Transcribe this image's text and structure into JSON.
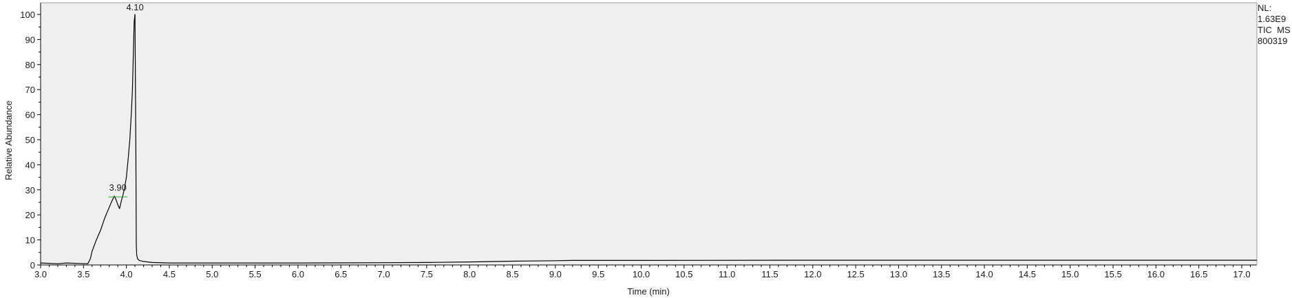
{
  "chart_data": {
    "type": "line",
    "xlabel": "Time (min)",
    "ylabel": "Relative Abundance",
    "xlim": [
      3.0,
      17.2
    ],
    "ylim": [
      0,
      100
    ],
    "x_ticks": [
      "3.0",
      "3.5",
      "4.0",
      "4.5",
      "5.0",
      "5.5",
      "6.0",
      "6.5",
      "7.0",
      "7.5",
      "8.0",
      "8.5",
      "9.0",
      "9.5",
      "10.0",
      "10.5",
      "11.0",
      "11.5",
      "12.0",
      "12.5",
      "13.0",
      "13.5",
      "14.0",
      "14.5",
      "15.0",
      "15.5",
      "16.0",
      "16.5",
      "17.0"
    ],
    "y_ticks": [
      "0",
      "10",
      "20",
      "30",
      "40",
      "50",
      "60",
      "70",
      "80",
      "90",
      "100"
    ],
    "grid": false,
    "colors": {
      "plot_bg": "#efefef",
      "line": "#000000",
      "frame": "#9a9a9a",
      "baseline_marker": "#3aa33a"
    },
    "series": [
      {
        "x": [
          3.0,
          3.2,
          3.3,
          3.45,
          3.55,
          3.58,
          3.6,
          3.65,
          3.7,
          3.75,
          3.8,
          3.83,
          3.86,
          3.88,
          3.9,
          3.92,
          3.94,
          3.96,
          3.98,
          4.0,
          4.02,
          4.04,
          4.06,
          4.07,
          4.08,
          4.09,
          4.1,
          4.11,
          4.115,
          4.12,
          4.13,
          4.15,
          4.2,
          4.3,
          4.5,
          5.0,
          6.0,
          7.0,
          7.5,
          8.0,
          8.5,
          9.0,
          9.2,
          10.0,
          12.0,
          14.0,
          16.0,
          17.2
        ],
        "values": [
          0.8,
          0.5,
          0.8,
          0.6,
          0.5,
          2.5,
          5.5,
          10.0,
          14.0,
          19.0,
          23.0,
          25.5,
          27.5,
          26.0,
          24.0,
          22.5,
          25.5,
          28.0,
          31.0,
          35.0,
          42.0,
          50.0,
          62.0,
          70.0,
          83.0,
          97.0,
          100.0,
          45.0,
          8.0,
          4.0,
          2.5,
          1.8,
          1.4,
          1.0,
          0.8,
          0.8,
          0.8,
          0.9,
          1.0,
          1.2,
          1.5,
          1.7,
          1.8,
          1.8,
          1.9,
          1.9,
          1.9,
          1.9
        ]
      }
    ],
    "annotations": [
      {
        "text": "4.10",
        "x": 4.1,
        "y": 100
      },
      {
        "text": "3.90",
        "x": 3.9,
        "y": 28
      }
    ]
  },
  "info": {
    "lines": [
      "NL:",
      "1.63E9",
      "TIC  MS",
      "800319"
    ]
  }
}
